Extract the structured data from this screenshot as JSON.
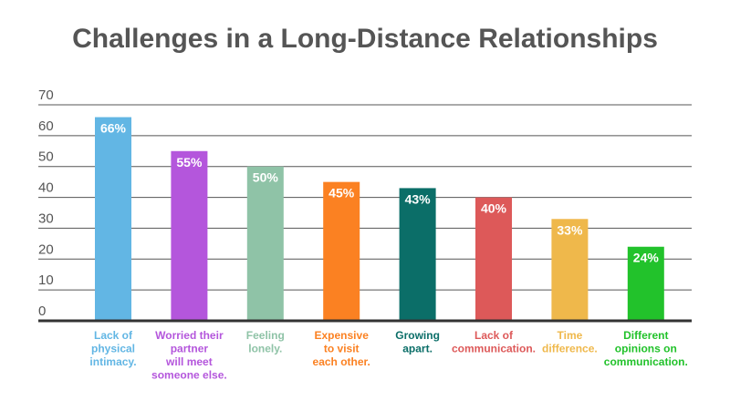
{
  "chart_data": {
    "type": "bar",
    "title": "Challenges in a Long-Distance Relationships",
    "xlabel": "",
    "ylabel": "",
    "ylim": [
      0,
      70
    ],
    "yticks": [
      0,
      10,
      20,
      30,
      40,
      50,
      60,
      70
    ],
    "grid": true,
    "categories": [
      [
        "Lack of",
        "physical",
        "intimacy."
      ],
      [
        "Worried their",
        "partner",
        "will meet",
        "someone else."
      ],
      [
        "Feeling",
        "lonely."
      ],
      [
        "Expensive",
        "to visit",
        "each other."
      ],
      [
        "Growing",
        "apart."
      ],
      [
        "Lack of",
        "communication."
      ],
      [
        "Time",
        "difference."
      ],
      [
        "Different",
        "opinions on",
        "communication."
      ]
    ],
    "values": [
      66,
      55,
      50,
      45,
      43,
      40,
      33,
      24
    ],
    "value_labels": [
      "66%",
      "55%",
      "50%",
      "45%",
      "43%",
      "40%",
      "33%",
      "24%"
    ],
    "colors": [
      "#62B6E4",
      "#B456DC",
      "#8FC3A7",
      "#FB8122",
      "#0B6E68",
      "#DD5959",
      "#EFB84B",
      "#22C22B"
    ]
  }
}
